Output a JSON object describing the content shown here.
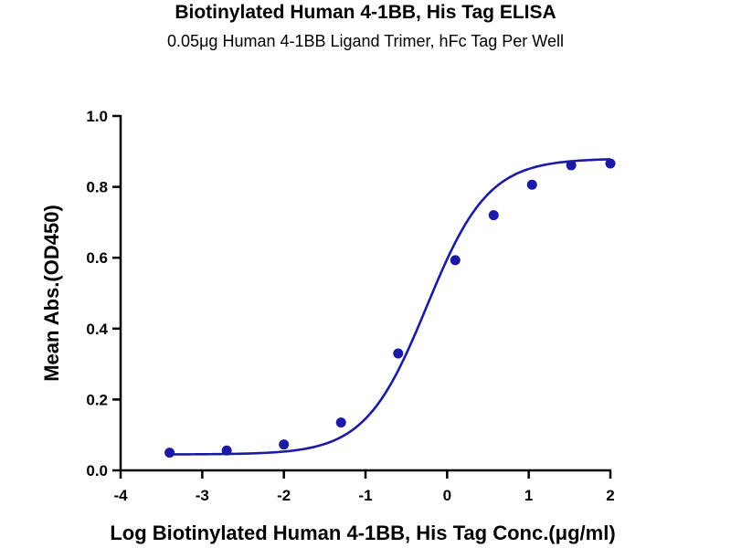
{
  "chart_data": {
    "type": "scatter",
    "title": "Biotinylated Human 4-1BB, His Tag ELISA",
    "subtitle": "0.05μg Human 4-1BB Ligand Trimer, hFc Tag Per Well",
    "xlabel": "Log Biotinylated Human 4-1BB, His Tag Conc.(μg/ml)",
    "ylabel": "Mean Abs.(OD450)",
    "xlim": [
      -4,
      2
    ],
    "ylim": [
      0,
      1.0
    ],
    "x_ticks": [
      "-4",
      "-3",
      "-2",
      "-1",
      "0",
      "1",
      "2"
    ],
    "y_ticks": [
      "0.0",
      "0.2",
      "0.4",
      "0.6",
      "0.8",
      "1.0"
    ],
    "grid": false,
    "legend": "none",
    "color": "#1a1aa6",
    "series": [
      {
        "points": [
          {
            "x": -3.4,
            "y": 0.05
          },
          {
            "x": -2.7,
            "y": 0.056
          },
          {
            "x": -2.0,
            "y": 0.073
          },
          {
            "x": -1.3,
            "y": 0.135
          },
          {
            "x": -0.6,
            "y": 0.33
          },
          {
            "x": 0.1,
            "y": 0.593
          },
          {
            "x": 0.57,
            "y": 0.72
          },
          {
            "x": 1.04,
            "y": 0.806
          },
          {
            "x": 1.52,
            "y": 0.861
          },
          {
            "x": 2.0,
            "y": 0.866
          }
        ],
        "fit": {
          "model": "4PL",
          "bottom": 0.045,
          "top": 0.88,
          "logEC50": -0.25,
          "hill": 1.15
        }
      }
    ]
  }
}
